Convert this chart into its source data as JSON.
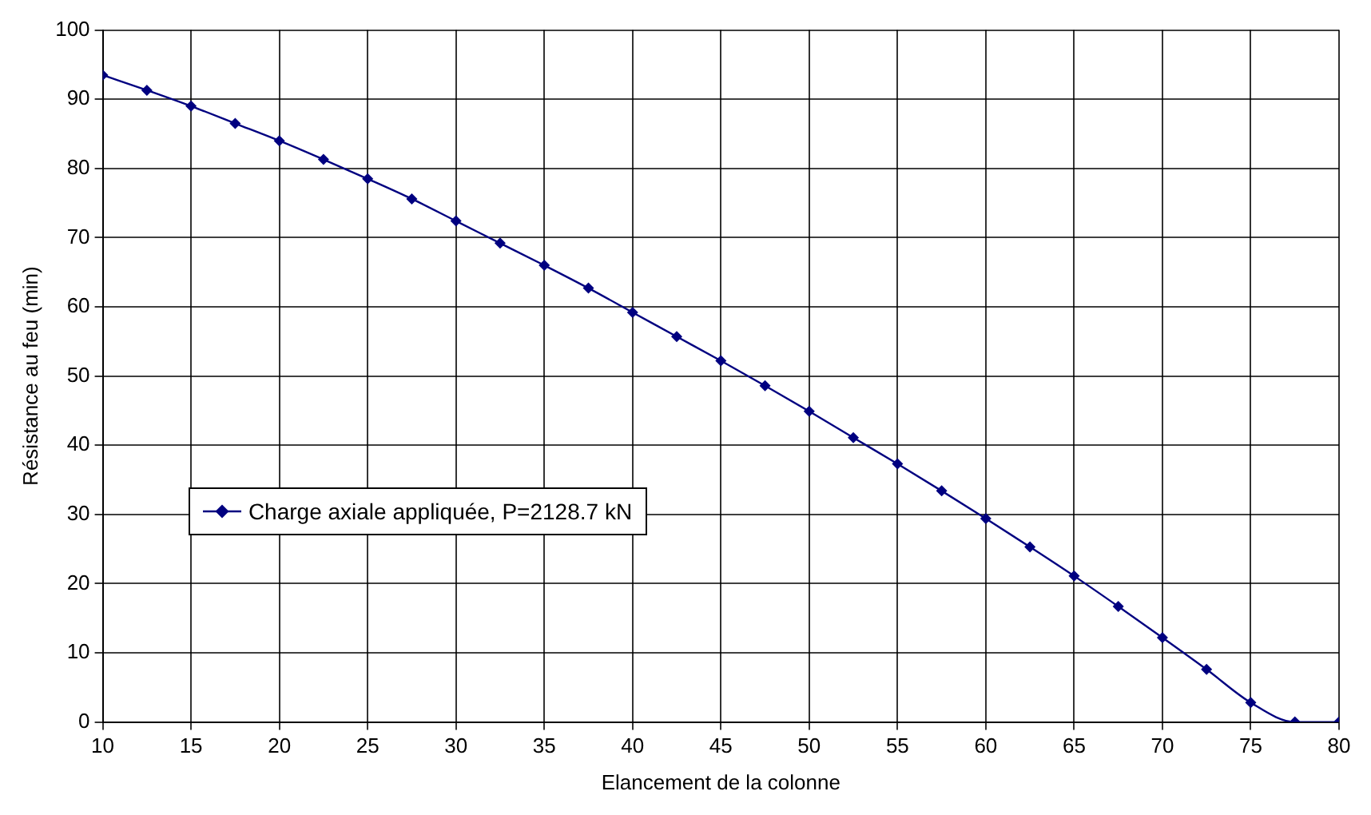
{
  "chart_data": {
    "type": "line",
    "xlabel": "Elancement de la colonne",
    "ylabel": "Résistance au feu (min)",
    "x": [
      10,
      12.5,
      15,
      17.5,
      20,
      22.5,
      25,
      27.5,
      30,
      32.5,
      35,
      37.5,
      40,
      42.5,
      45,
      47.5,
      50,
      52.5,
      55,
      57.5,
      60,
      62.5,
      65,
      67.5,
      70,
      72.5,
      75,
      77.5,
      80
    ],
    "series": [
      {
        "name": "Charge axiale appliquée, P=2128.7 kN",
        "color": "#000080",
        "values": [
          93.5,
          91.3,
          89,
          86.5,
          84,
          81.3,
          78.5,
          75.6,
          72.4,
          69.2,
          66,
          62.7,
          59.2,
          55.7,
          52.2,
          48.6,
          44.9,
          41.1,
          37.3,
          33.4,
          29.4,
          25.3,
          21.1,
          16.7,
          12.2,
          7.6,
          2.8,
          0,
          0
        ]
      }
    ],
    "xlim": [
      10,
      80
    ],
    "xticks": [
      10,
      15,
      20,
      25,
      30,
      35,
      40,
      45,
      50,
      55,
      60,
      65,
      70,
      75,
      80
    ],
    "ylim": [
      0,
      100
    ],
    "yticks": [
      0,
      10,
      20,
      30,
      40,
      50,
      60,
      70,
      80,
      90,
      100
    ],
    "grid": true,
    "legend": "left",
    "marker": "diamond",
    "line_style": "solid"
  }
}
